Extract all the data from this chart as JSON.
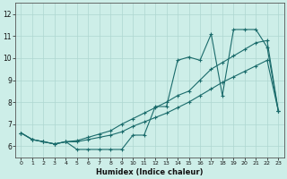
{
  "xlabel": "Humidex (Indice chaleur)",
  "xlim": [
    -0.5,
    23.5
  ],
  "ylim": [
    5.5,
    12.5
  ],
  "yticks": [
    6,
    7,
    8,
    9,
    10,
    11,
    12
  ],
  "xticks": [
    0,
    1,
    2,
    3,
    4,
    5,
    6,
    7,
    8,
    9,
    10,
    11,
    12,
    13,
    14,
    15,
    16,
    17,
    18,
    19,
    20,
    21,
    22,
    23
  ],
  "bg_color": "#cdeee8",
  "line_color": "#1a6b6b",
  "grid_color": "#aed6d0",
  "line1_y": [
    6.6,
    6.3,
    6.2,
    6.1,
    6.2,
    5.85,
    5.85,
    5.85,
    5.85,
    5.85,
    6.5,
    6.5,
    7.8,
    7.8,
    9.9,
    10.05,
    9.9,
    11.1,
    8.3,
    11.3,
    11.3,
    11.3,
    10.5,
    7.6
  ],
  "line2_y": [
    6.6,
    6.3,
    6.2,
    6.1,
    6.2,
    6.25,
    6.4,
    6.55,
    6.7,
    7.0,
    7.25,
    7.5,
    7.75,
    8.0,
    8.3,
    8.5,
    9.0,
    9.5,
    9.8,
    10.1,
    10.4,
    10.7,
    10.8,
    7.6
  ],
  "line3_y": [
    6.6,
    6.3,
    6.2,
    6.1,
    6.2,
    6.2,
    6.3,
    6.4,
    6.5,
    6.65,
    6.9,
    7.1,
    7.3,
    7.5,
    7.75,
    8.0,
    8.3,
    8.6,
    8.9,
    9.15,
    9.4,
    9.65,
    9.9,
    7.6
  ]
}
